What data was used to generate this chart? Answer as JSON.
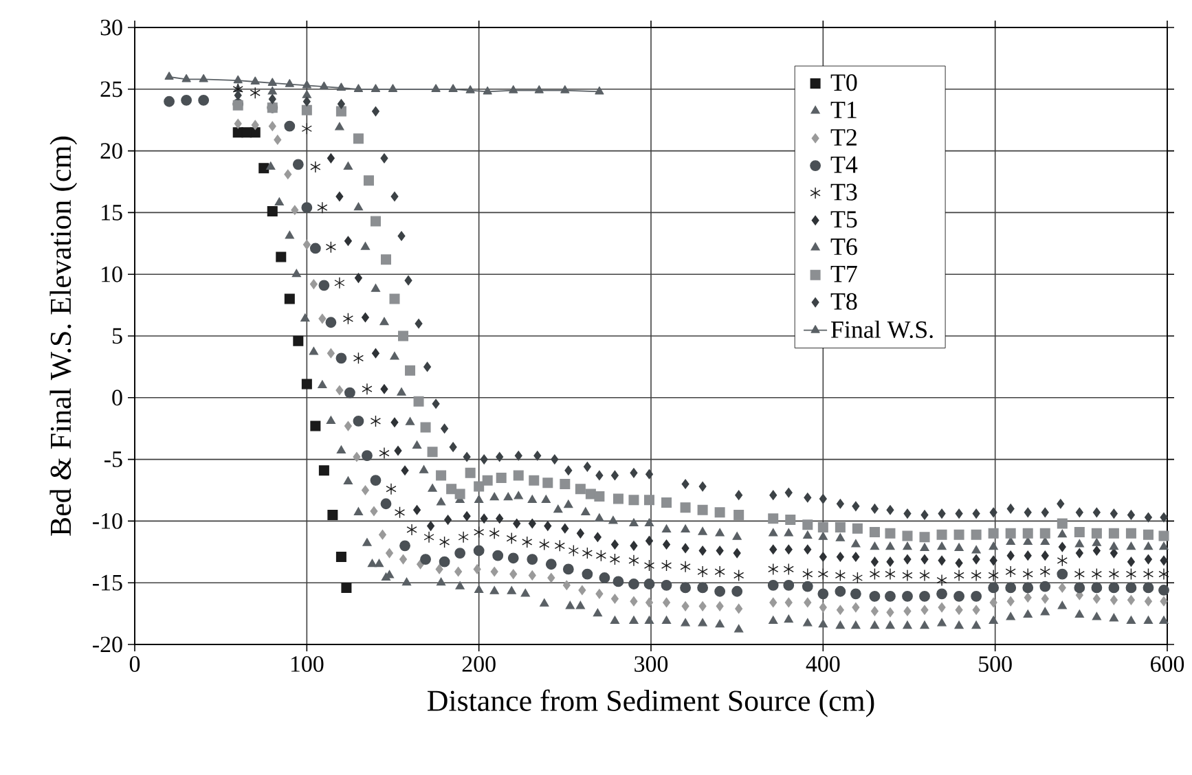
{
  "chart_data": {
    "type": "scatter",
    "xlabel": "Distance from Sediment Source (cm)",
    "ylabel": "Bed & Final W.S. Elevation (cm)",
    "xlim": [
      0,
      600
    ],
    "ylim": [
      -20,
      30
    ],
    "xticks": [
      0,
      100,
      200,
      300,
      400,
      500,
      600
    ],
    "yticks": [
      -20,
      -15,
      -10,
      -5,
      0,
      5,
      10,
      15,
      20,
      25,
      30
    ],
    "grid": true,
    "legend": "top right",
    "series": [
      {
        "name": "T0",
        "color": "#1a1a1a",
        "marker": "square",
        "x": [
          60,
          65,
          70,
          75,
          80,
          85,
          90,
          95,
          100,
          105,
          110,
          115,
          120,
          123
        ],
        "values": [
          21.5,
          21.5,
          21.5,
          18.6,
          15.1,
          11.4,
          8.0,
          4.6,
          1.1,
          -2.3,
          -5.9,
          -9.5,
          -12.9,
          -15.4
        ]
      },
      {
        "name": "T1",
        "color": "#5a6065",
        "marker": "triangle",
        "x": [
          60,
          80,
          100,
          79,
          84,
          90,
          94,
          99,
          104,
          109,
          114,
          120,
          124,
          130,
          135,
          138,
          142,
          146,
          148,
          158,
          178,
          189,
          200,
          209,
          219,
          227,
          238,
          253,
          259,
          269,
          279,
          290,
          299,
          309,
          320,
          330,
          340,
          351,
          371,
          380,
          391,
          400,
          410,
          419,
          430,
          439,
          449,
          459,
          469,
          479,
          489,
          499,
          509,
          519,
          529,
          539,
          549,
          559,
          569,
          579,
          589,
          598
        ],
        "values": [
          25,
          24.8,
          24.5,
          18.7,
          15.8,
          13.1,
          10,
          6.4,
          3.7,
          1,
          -1.9,
          -4.3,
          -6.8,
          -9.3,
          -11.8,
          -13.5,
          -13.5,
          -14.6,
          -14.4,
          -15,
          -15,
          -15.3,
          -15.6,
          -15.7,
          -15.7,
          -15.9,
          -16.7,
          -16.9,
          -16.9,
          -17.5,
          -18.1,
          -18.1,
          -18.1,
          -18.1,
          -18.3,
          -18.3,
          -18.4,
          -18.8,
          -18.1,
          -18,
          -18.3,
          -18.4,
          -18.5,
          -18.5,
          -18.5,
          -18.5,
          -18.5,
          -18.5,
          -18.3,
          -18.5,
          -18.5,
          -18.1,
          -17.8,
          -17.6,
          -17.4,
          -16.9,
          -17.6,
          -17.8,
          -17.9,
          -18.1,
          -18.1,
          -18.1
        ]
      },
      {
        "name": "T2",
        "color": "#9a9a9a",
        "marker": "diamond",
        "x": [
          60,
          70,
          80,
          83,
          89,
          93,
          100,
          104,
          109,
          114,
          119,
          124,
          129,
          134,
          139,
          144,
          148,
          156,
          166,
          177,
          188,
          199,
          209,
          220,
          231,
          242,
          251,
          260,
          270,
          279,
          290,
          299,
          309,
          320,
          330,
          340,
          351,
          371,
          380,
          391,
          400,
          410,
          419,
          430,
          439,
          449,
          459,
          469,
          479,
          489,
          499,
          509,
          519,
          529,
          539,
          549,
          559,
          569,
          579,
          589,
          598
        ],
        "values": [
          22.2,
          22.1,
          22,
          20.9,
          18.1,
          15.2,
          12.4,
          9.2,
          6.4,
          3.6,
          0.6,
          -2.3,
          -4.8,
          -7.5,
          -9.2,
          -11.1,
          -12.6,
          -13.1,
          -13.5,
          -13.9,
          -14.1,
          -13.9,
          -14.1,
          -14.3,
          -14.4,
          -14.6,
          -15.2,
          -15.6,
          -15.9,
          -16.3,
          -16.5,
          -16.6,
          -16.6,
          -16.9,
          -16.9,
          -16.9,
          -17.1,
          -16.6,
          -16.6,
          -16.6,
          -17,
          -17.2,
          -17,
          -17.3,
          -17.4,
          -17.3,
          -17.2,
          -17,
          -17.2,
          -17.2,
          -16.6,
          -16.5,
          -16.2,
          -16.3,
          -15.4,
          -16,
          -16.3,
          -16.4,
          -16.4,
          -16.5,
          -16.5
        ]
      },
      {
        "name": "T4",
        "color": "#4a5055",
        "marker": "circle",
        "x": [
          20,
          30,
          40,
          60,
          80,
          90,
          95,
          100,
          105,
          110,
          114,
          120,
          125,
          130,
          135,
          140,
          146,
          157,
          169,
          180,
          189,
          200,
          211,
          220,
          231,
          242,
          252,
          263,
          273,
          281,
          290,
          299,
          309,
          320,
          330,
          340,
          350,
          371,
          380,
          391,
          400,
          410,
          419,
          430,
          439,
          449,
          459,
          469,
          479,
          489,
          499,
          509,
          519,
          529,
          539,
          549,
          559,
          569,
          579,
          589,
          598
        ],
        "values": [
          24,
          24.1,
          24.1,
          23.8,
          23.5,
          22,
          18.9,
          15.4,
          12.1,
          9.1,
          6.1,
          3.2,
          0.4,
          -1.9,
          -4.7,
          -6.7,
          -8.6,
          -12,
          -13.1,
          -13.3,
          -12.6,
          -12.4,
          -12.8,
          -13,
          -13.1,
          -13.5,
          -13.9,
          -14.3,
          -14.6,
          -14.9,
          -15.1,
          -15.1,
          -15.2,
          -15.4,
          -15.4,
          -15.7,
          -15.7,
          -15.2,
          -15.2,
          -15.3,
          -15.9,
          -15.7,
          -15.9,
          -16.1,
          -16.1,
          -16.1,
          -16.1,
          -15.9,
          -16.1,
          -16.1,
          -15.4,
          -15.4,
          -15.4,
          -15.3,
          -14.3,
          -15.4,
          -15.4,
          -15.4,
          -15.4,
          -15.4,
          -15.6
        ]
      },
      {
        "name": "T3",
        "color": "#1a1a1a",
        "marker": "cross",
        "x": [
          60,
          70,
          100,
          105,
          109,
          114,
          119,
          124,
          130,
          135,
          140,
          145,
          149,
          154,
          161,
          171,
          180,
          191,
          200,
          209,
          219,
          228,
          238,
          247,
          255,
          263,
          271,
          279,
          290,
          299,
          309,
          320,
          330,
          340,
          351,
          371,
          380,
          391,
          400,
          410,
          420,
          430,
          439,
          449,
          459,
          469,
          479,
          489,
          499,
          509,
          519,
          529,
          539,
          549,
          559,
          569,
          579,
          589,
          598
        ],
        "values": [
          25,
          24.7,
          21.8,
          18.7,
          15.4,
          12.2,
          9.3,
          6.4,
          3.2,
          0.7,
          -1.9,
          -4.5,
          -7.4,
          -9.3,
          -10.7,
          -11.3,
          -11.7,
          -11.3,
          -10.9,
          -11,
          -11.4,
          -11.7,
          -11.9,
          -12,
          -12.4,
          -12.6,
          -12.8,
          -13.1,
          -13.2,
          -13.6,
          -13.6,
          -13.7,
          -14.1,
          -14.1,
          -14.4,
          -13.9,
          -13.9,
          -14.3,
          -14.3,
          -14.4,
          -14.6,
          -14.3,
          -14.3,
          -14.4,
          -14.4,
          -14.8,
          -14.4,
          -14.4,
          -14.4,
          -14.1,
          -14.3,
          -14.1,
          -13.2,
          -14.3,
          -14.3,
          -14.3,
          -14.3,
          -14.3,
          -14.3
        ]
      },
      {
        "name": "T5",
        "color": "#2e3236",
        "marker": "diamond",
        "x": [
          114,
          119,
          124,
          130,
          134,
          140,
          145,
          151,
          153,
          157,
          164,
          172,
          182,
          193,
          203,
          212,
          222,
          231,
          240,
          250,
          259,
          269,
          279,
          290,
          299,
          309,
          320,
          330,
          340,
          350,
          371,
          380,
          391,
          400,
          410,
          419,
          430,
          439,
          449,
          459,
          469,
          479,
          489,
          499,
          509,
          519,
          529,
          539,
          549,
          559,
          569,
          579,
          589,
          598
        ],
        "values": [
          19.4,
          16.3,
          12.7,
          9.7,
          6.5,
          3.6,
          0.7,
          -2,
          -4.3,
          -5.9,
          -9.1,
          -10.4,
          -9.9,
          -9.6,
          -9.8,
          -9.8,
          -10.2,
          -10.2,
          -10.4,
          -10.6,
          -11,
          -11.3,
          -11.9,
          -12,
          -11.6,
          -11.9,
          -12.2,
          -12.4,
          -12.4,
          -12.6,
          -12.3,
          -12.3,
          -12.3,
          -12.9,
          -12.9,
          -12.9,
          -13.3,
          -13.3,
          -13.1,
          -13.1,
          -13.2,
          -13.4,
          -13.1,
          -13.2,
          -12.8,
          -12.8,
          -12.8,
          -12.1,
          -12.6,
          -12.4,
          -12.6,
          -13.3,
          -13.1,
          -13.2
        ]
      },
      {
        "name": "T6",
        "color": "#5a6065",
        "marker": "triangle",
        "x": [
          119,
          124,
          130,
          134,
          140,
          145,
          151,
          155,
          160,
          164,
          168,
          173,
          178,
          189,
          200,
          209,
          217,
          223,
          231,
          239,
          246,
          252,
          262,
          270,
          278,
          290,
          299,
          309,
          320,
          330,
          340,
          350,
          371,
          380,
          391,
          400,
          410,
          419,
          430,
          439,
          449,
          459,
          469,
          479,
          489,
          499,
          509,
          519,
          529,
          539,
          549,
          559,
          569,
          579,
          589,
          598
        ],
        "values": [
          21.9,
          18.7,
          15.4,
          12.2,
          8.8,
          6.1,
          3.3,
          0.4,
          -2,
          -3.9,
          -5.9,
          -7.4,
          -8.5,
          -8.3,
          -8.3,
          -8.1,
          -8.1,
          -8,
          -8.3,
          -8.3,
          -9.1,
          -8.7,
          -9.3,
          -9.8,
          -10,
          -10.2,
          -10.2,
          -10.7,
          -10.7,
          -10.9,
          -11,
          -11.3,
          -11,
          -11,
          -11.2,
          -11.3,
          -11.4,
          -11.9,
          -12.1,
          -12.1,
          -12.1,
          -12.2,
          -12.1,
          -12.2,
          -12.4,
          -12.1,
          -11.7,
          -11.7,
          -11.7,
          -11.1,
          -11.9,
          -11.8,
          -12.1,
          -12.1,
          -12.1,
          -12.1
        ]
      },
      {
        "name": "T7",
        "color": "#8c8f92",
        "marker": "square",
        "x": [
          60,
          80,
          100,
          120,
          130,
          136,
          140,
          146,
          151,
          156,
          160,
          165,
          169,
          173,
          178,
          184,
          189,
          195,
          200,
          205,
          213,
          223,
          232,
          240,
          250,
          259,
          265,
          270,
          281,
          290,
          299,
          309,
          320,
          330,
          340,
          351,
          371,
          381,
          391,
          400,
          410,
          420,
          430,
          439,
          449,
          459,
          469,
          479,
          489,
          499,
          509,
          519,
          529,
          539,
          549,
          559,
          569,
          579,
          589,
          598
        ],
        "values": [
          23.7,
          23.5,
          23.3,
          23.2,
          21,
          17.6,
          14.3,
          11.2,
          8,
          5,
          2.2,
          -0.3,
          -2.4,
          -4.4,
          -6.3,
          -7.4,
          -7.8,
          -6.1,
          -7.2,
          -6.7,
          -6.5,
          -6.3,
          -6.7,
          -6.9,
          -7,
          -7.4,
          -7.8,
          -8,
          -8.2,
          -8.3,
          -8.3,
          -8.5,
          -8.9,
          -9.1,
          -9.3,
          -9.5,
          -9.8,
          -9.9,
          -10.3,
          -10.5,
          -10.5,
          -10.6,
          -10.9,
          -11,
          -11.2,
          -11.3,
          -11.1,
          -11.1,
          -11.1,
          -11,
          -11,
          -11,
          -11,
          -10.2,
          -10.9,
          -11,
          -11,
          -11,
          -11.1,
          -11.2
        ]
      },
      {
        "name": "T8",
        "color": "#3c4246",
        "marker": "diamond",
        "x": [
          60,
          80,
          100,
          120,
          140,
          145,
          151,
          155,
          159,
          165,
          170,
          175,
          180,
          185,
          193,
          203,
          212,
          223,
          234,
          244,
          252,
          263,
          270,
          279,
          290,
          299,
          320,
          330,
          351,
          371,
          380,
          391,
          400,
          410,
          419,
          430,
          439,
          449,
          459,
          469,
          479,
          489,
          499,
          509,
          519,
          529,
          538,
          549,
          559,
          569,
          579,
          589,
          598
        ],
        "values": [
          24.5,
          24.2,
          24,
          23.8,
          23.2,
          19.4,
          16.3,
          13.1,
          9.5,
          6,
          2.5,
          -0.5,
          -2.5,
          -4,
          -4.8,
          -5,
          -4.8,
          -4.7,
          -4.7,
          -5,
          -5.9,
          -5.6,
          -6.3,
          -6.3,
          -6.1,
          -6.2,
          -7,
          -7.2,
          -7.9,
          -7.9,
          -7.7,
          -8.1,
          -8.2,
          -8.6,
          -8.8,
          -9,
          -9.1,
          -9.4,
          -9.5,
          -9.4,
          -9.4,
          -9.4,
          -9.3,
          -9,
          -9.3,
          -9.3,
          -8.6,
          -9.3,
          -9.3,
          -9.4,
          -9.5,
          -9.7,
          -9.7
        ]
      },
      {
        "name": "Final W.S.",
        "type": "line",
        "color": "#5a6065",
        "marker": "triangle",
        "x": [
          20,
          30,
          40,
          60,
          70,
          80,
          90,
          100,
          110,
          120,
          130,
          140,
          150,
          175,
          185,
          195,
          205,
          220,
          235,
          250,
          270
        ],
        "values": [
          26,
          25.8,
          25.8,
          25.7,
          25.6,
          25.5,
          25.4,
          25.3,
          25.2,
          25.1,
          25,
          25,
          25,
          25,
          25,
          24.9,
          24.8,
          24.9,
          24.9,
          24.9,
          24.8
        ]
      }
    ]
  }
}
